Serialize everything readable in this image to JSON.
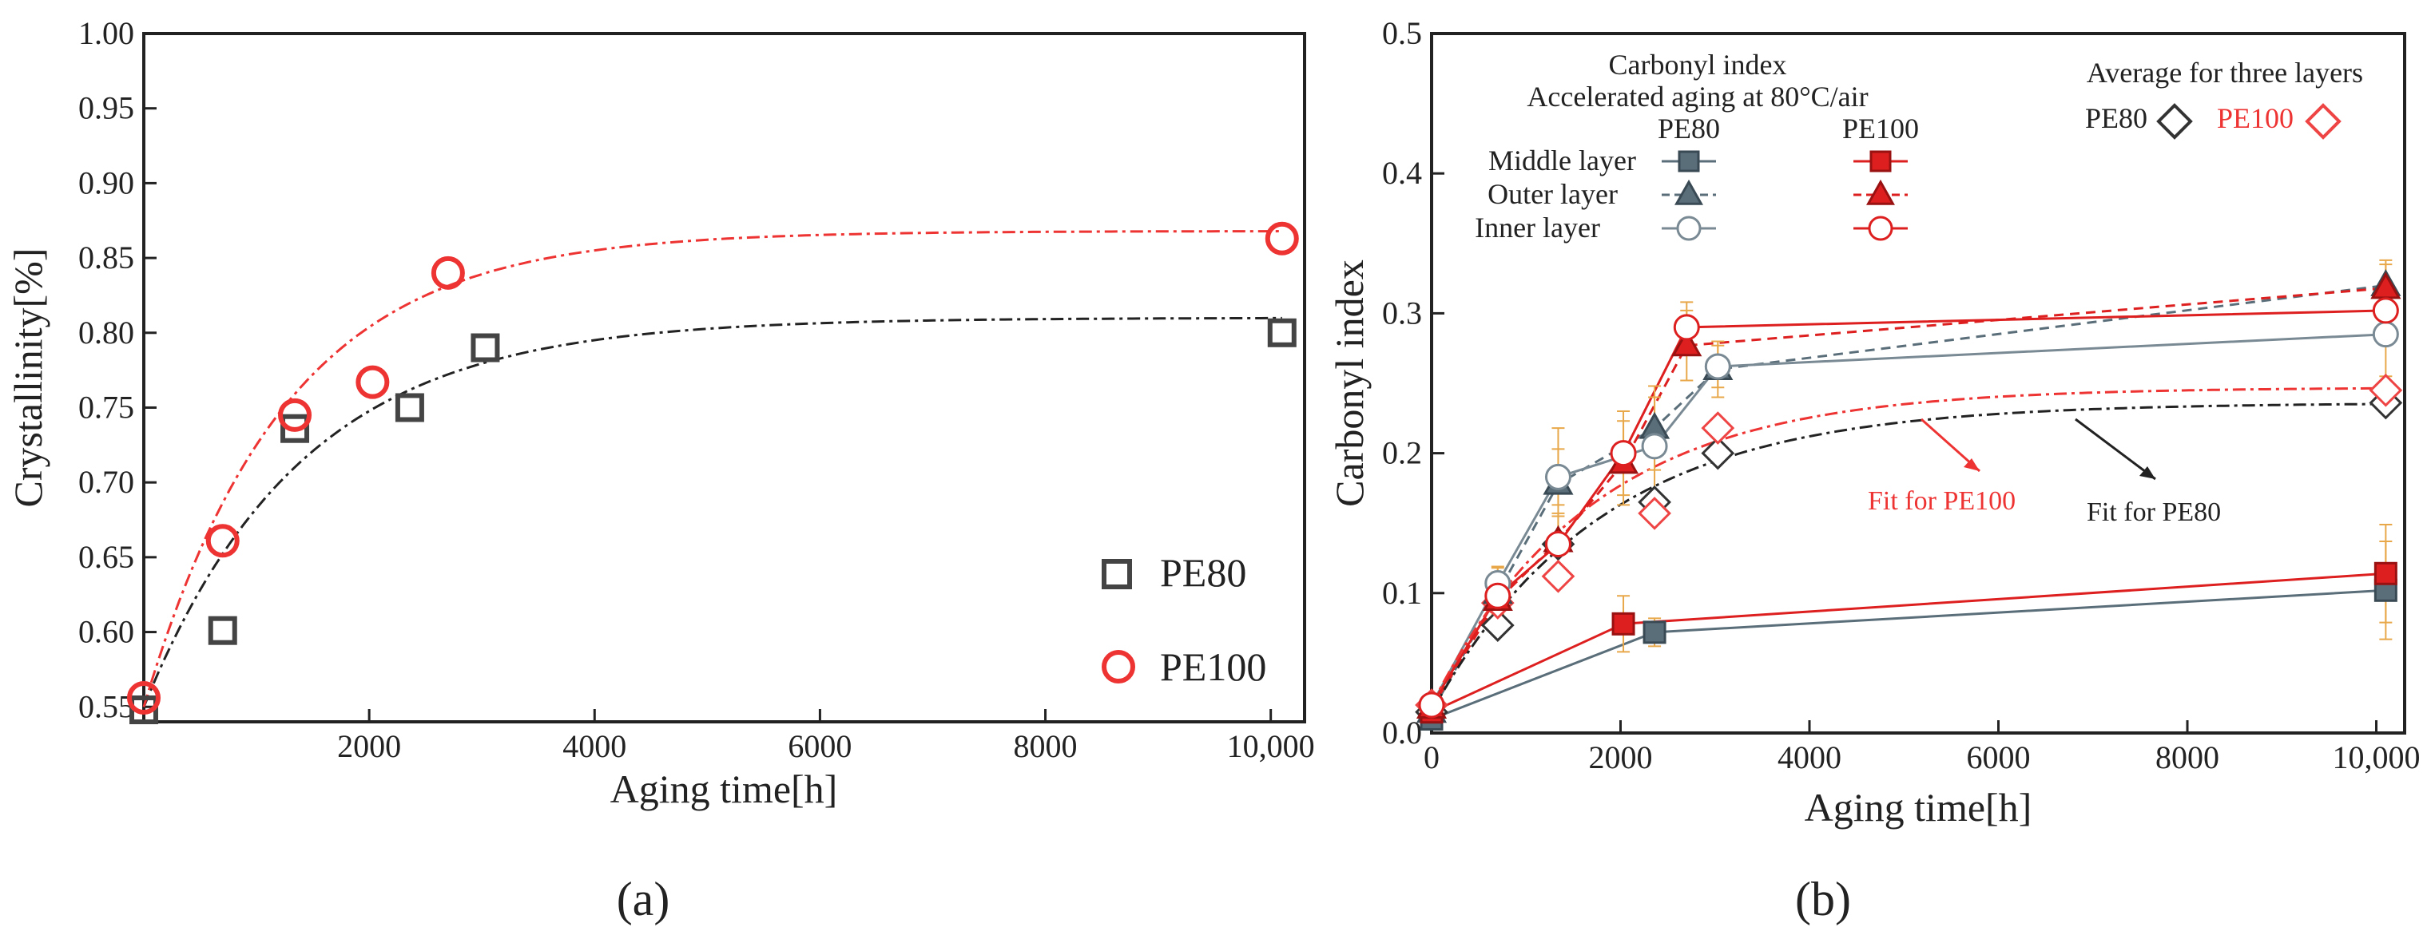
{
  "chart_data": [
    {
      "type": "scatter",
      "panel_label": "(a)",
      "xlabel": "Aging time[h]",
      "ylabel": "Crystallinity[%]",
      "xlim": [
        0,
        10300
      ],
      "ylim": [
        0.54,
        1.0
      ],
      "xticks": [
        2000,
        4000,
        6000,
        8000,
        10000
      ],
      "xtick_labels": [
        "2000",
        "4000",
        "6000",
        "8000",
        "10,000"
      ],
      "yticks": [
        0.55,
        0.6,
        0.65,
        0.7,
        0.75,
        0.8,
        0.85,
        0.9,
        0.95,
        1.0
      ],
      "ytick_labels": [
        "0.55",
        "0.60",
        "0.65",
        "0.70",
        "0.75",
        "0.80",
        "0.85",
        "0.90",
        "0.95",
        "1.00"
      ],
      "grid": false,
      "legend_position": "bottom-right",
      "series": [
        {
          "name": "PE80",
          "marker": "square",
          "color": "#444444",
          "x": [
            0,
            700,
            1340,
            2360,
            3030,
            10100
          ],
          "y": [
            0.548,
            0.601,
            0.736,
            0.75,
            0.79,
            0.8
          ],
          "fit": {
            "y0": 0.55,
            "ymax": 0.81,
            "tau": 1400,
            "color": "#222222"
          }
        },
        {
          "name": "PE100",
          "marker": "circle",
          "color": "#ee3333",
          "x": [
            0,
            700,
            1340,
            2030,
            2700,
            10100
          ],
          "y": [
            0.556,
            0.661,
            0.745,
            0.767,
            0.84,
            0.863
          ],
          "fit": {
            "y0": 0.55,
            "ymax": 0.868,
            "tau": 1250,
            "color": "#ee3333"
          }
        }
      ]
    },
    {
      "type": "line",
      "panel_label": "(b)",
      "xlabel": "Aging time[h]",
      "ylabel": "Carbonyl index",
      "xlim": [
        0,
        10300
      ],
      "ylim": [
        0.0,
        0.5
      ],
      "xticks": [
        0,
        2000,
        4000,
        6000,
        8000,
        10000
      ],
      "xtick_labels": [
        "0",
        "2000",
        "4000",
        "6000",
        "8000",
        "10,000"
      ],
      "yticks": [
        0.0,
        0.1,
        0.2,
        0.3,
        0.4,
        0.5
      ],
      "ytick_labels": [
        "0.0",
        "0.1",
        "0.2",
        "0.3",
        "0.4",
        "0.5"
      ],
      "grid": false,
      "legend_title": "Carbonyl index",
      "legend_subtitle": "Accelerated aging at 80°C/air",
      "legend_col_pe80": "PE80",
      "legend_col_pe100": "PE100",
      "avg_legend_title": "Average for three layers",
      "avg_pe80_label": "PE80",
      "avg_pe100_label": "PE100",
      "fit_label_pe100": "Fit for PE100",
      "fit_label_pe80": "Fit for PE80",
      "series": [
        {
          "name": "Middle layer",
          "material": "PE80",
          "marker": "square",
          "filled": true,
          "color": "#5a6e7a",
          "dash": "solid",
          "x": [
            0,
            2360,
            10100
          ],
          "y": [
            0.01,
            0.072,
            0.102
          ],
          "err": [
            0.005,
            0.01,
            0.035
          ]
        },
        {
          "name": "Outer layer",
          "material": "PE80",
          "marker": "triangle",
          "filled": true,
          "color": "#5a6e7a",
          "dash": "dash",
          "x": [
            0,
            700,
            1340,
            2360,
            3030,
            10100
          ],
          "y": [
            0.015,
            0.1,
            0.178,
            0.218,
            0.26,
            0.32
          ],
          "err": [
            0.005,
            0.015,
            0.04,
            0.03,
            0.02,
            0.015
          ]
        },
        {
          "name": "Inner layer",
          "material": "PE80",
          "marker": "circle",
          "filled": false,
          "color": "#7a8a94",
          "dash": "solid",
          "x": [
            0,
            700,
            1340,
            2360,
            3030,
            10100
          ],
          "y": [
            0.02,
            0.107,
            0.183,
            0.205,
            0.262,
            0.285
          ],
          "err": [
            0.005,
            0.012,
            0.02,
            0.035,
            0.015,
            0.03
          ]
        },
        {
          "name": "Middle layer",
          "material": "PE100",
          "marker": "square",
          "filled": true,
          "color": "#dd1f1f",
          "dash": "solid",
          "x": [
            0,
            2030,
            10100
          ],
          "y": [
            0.015,
            0.078,
            0.114
          ],
          "err": [
            0.005,
            0.02,
            0.035
          ]
        },
        {
          "name": "Outer layer",
          "material": "PE100",
          "marker": "triangle",
          "filled": true,
          "color": "#dd1f1f",
          "dash": "dash",
          "x": [
            0,
            700,
            1340,
            2030,
            2700,
            10100
          ],
          "y": [
            0.018,
            0.095,
            0.137,
            0.193,
            0.277,
            0.318
          ],
          "err": [
            0.005,
            0.015,
            0.02,
            0.03,
            0.025,
            0.02
          ]
        },
        {
          "name": "Inner layer",
          "material": "PE100",
          "marker": "circle",
          "filled": false,
          "color": "#dd1f1f",
          "dash": "solid",
          "x": [
            0,
            700,
            1340,
            2030,
            2700,
            10100
          ],
          "y": [
            0.02,
            0.098,
            0.135,
            0.2,
            0.29,
            0.302
          ],
          "err": [
            0.005,
            0.02,
            0.02,
            0.03,
            0.018,
            0.02
          ]
        }
      ],
      "averages": [
        {
          "name": "PE80",
          "marker": "diamond",
          "color": "#333333",
          "x": [
            0,
            700,
            1340,
            2360,
            3030,
            10100
          ],
          "y": [
            0.015,
            0.077,
            0.135,
            0.165,
            0.2,
            0.236
          ],
          "fit": {
            "y0": 0.015,
            "ymax": 0.236,
            "tau": 1800,
            "color": "#222222"
          }
        },
        {
          "name": "PE100",
          "marker": "diamond",
          "color": "#ee4444",
          "x": [
            0,
            700,
            1340,
            2360,
            3030,
            10100
          ],
          "y": [
            0.02,
            0.093,
            0.112,
            0.157,
            0.218,
            0.245
          ],
          "fit": {
            "y0": 0.02,
            "ymax": 0.247,
            "tau": 1700,
            "color": "#ee3333"
          }
        }
      ]
    }
  ]
}
